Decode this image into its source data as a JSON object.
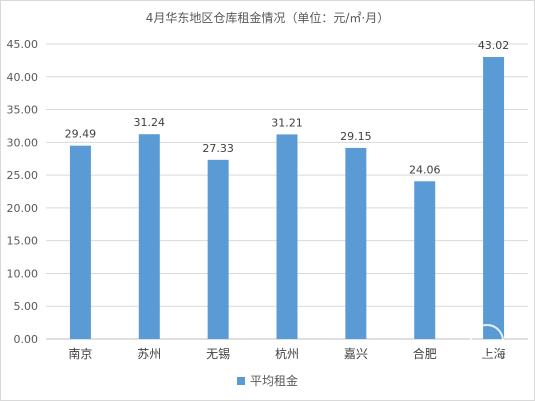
{
  "chart_data": {
    "type": "bar",
    "title": "4月华东地区仓库租金情况（单位：元/㎡·月）",
    "categories": [
      "南京",
      "苏州",
      "无锡",
      "杭州",
      "嘉兴",
      "合肥",
      "上海"
    ],
    "series": [
      {
        "name": "平均租金",
        "values": [
          29.49,
          31.24,
          27.33,
          31.21,
          29.15,
          24.06,
          43.02
        ]
      }
    ],
    "ylim": [
      0,
      45
    ],
    "yticks": [
      0,
      5,
      10,
      15,
      20,
      25,
      30,
      35,
      40,
      45
    ],
    "grid": true,
    "legend": "bottom",
    "data_labels": true,
    "colors": {
      "bar": "#5b9bd5",
      "grid": "#d9d9d9",
      "axis": "#bfbfbf"
    }
  }
}
